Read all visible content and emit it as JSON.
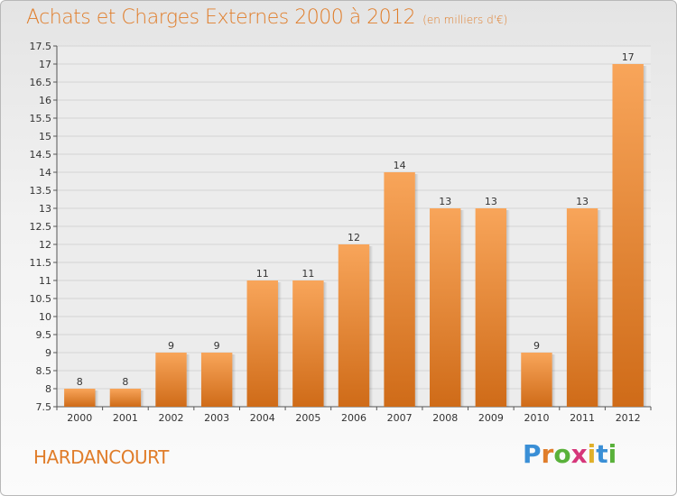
{
  "header": {
    "title": "Achats et Charges Externes 2000 à 2012",
    "unit": "(en milliers d'€)"
  },
  "footer": {
    "town": "HARDANCOURT",
    "brand": "Proxiti"
  },
  "colors": {
    "accent": "#e07d2a",
    "bar_top": "#f8a55a",
    "bar_bottom": "#cf6b18"
  },
  "chart_data": {
    "type": "bar",
    "title": "Achats et Charges Externes 2000 à 2012",
    "subtitle": "(en milliers d'€)",
    "categories": [
      "2000",
      "2001",
      "2002",
      "2003",
      "2004",
      "2005",
      "2006",
      "2007",
      "2008",
      "2009",
      "2010",
      "2011",
      "2012"
    ],
    "values": [
      8,
      8,
      9,
      9,
      11,
      11,
      12,
      14,
      13,
      13,
      9,
      13,
      17
    ],
    "ylim": [
      7.5,
      17.5
    ],
    "yticks": [
      7.5,
      8,
      8.5,
      9,
      9.5,
      10,
      10.5,
      11,
      11.5,
      12,
      12.5,
      13,
      13.5,
      14,
      14.5,
      15,
      15.5,
      16,
      16.5,
      17,
      17.5
    ],
    "grid": true,
    "legend": "none"
  }
}
